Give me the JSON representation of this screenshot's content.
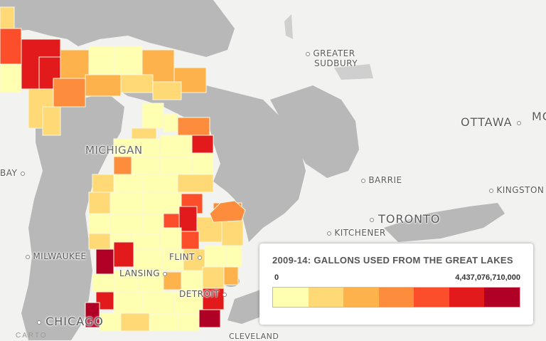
{
  "map": {
    "cities": [
      {
        "name": "GREATER",
        "name2": "SUDBURY",
        "cls": "city"
      },
      {
        "name": "OTTAWA",
        "cls": "city-lg"
      },
      {
        "name": "MC",
        "cls": "city-lg"
      },
      {
        "name": "BARRIE",
        "cls": "city"
      },
      {
        "name": "KINGSTON",
        "cls": "city"
      },
      {
        "name": "TORONTO",
        "cls": "city-lg"
      },
      {
        "name": "KITCHENER",
        "cls": "city"
      },
      {
        "name": "MILWAUKEE",
        "cls": "city"
      },
      {
        "name": "FLINT",
        "cls": "city"
      },
      {
        "name": "LANSING",
        "cls": "city"
      },
      {
        "name": "DETROIT",
        "cls": "city"
      },
      {
        "name": "CHICAGO",
        "cls": "city-lg"
      },
      {
        "name": "BAY",
        "cls": "city"
      },
      {
        "name": "CLEVELAND",
        "cls": "city"
      }
    ],
    "state_label": "MICHIGAN",
    "attribution": "CARTO"
  },
  "legend": {
    "title": "2009-14: GALLONS USED FROM THE GREAT LAKES",
    "min": "0",
    "max": "4,437,076,710,000",
    "colors": [
      "#ffffb2",
      "#fed976",
      "#feb24c",
      "#fd8d3c",
      "#fc4e2a",
      "#e31a1c",
      "#b10026"
    ]
  }
}
